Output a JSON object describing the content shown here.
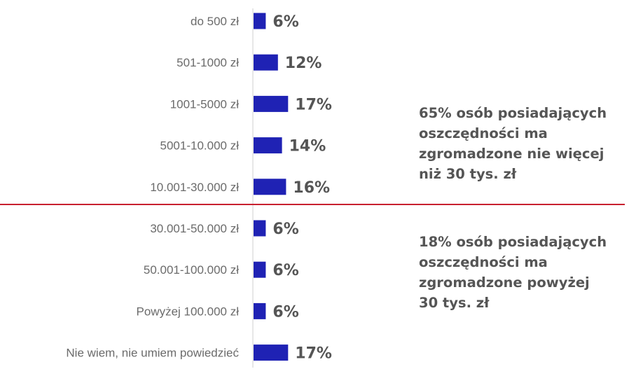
{
  "chart_data": {
    "type": "bar",
    "orientation": "horizontal",
    "categories": [
      "do 500 zł",
      "501-1000 zł",
      "1001-5000 zł",
      "5001-10.000 zł",
      "10.001-30.000 zł",
      "30.001-50.000 zł",
      "50.001-100.000 zł",
      "Powyżej 100.000 zł",
      "Nie wiem, nie umiem powiedzieć"
    ],
    "values": [
      6,
      12,
      17,
      14,
      16,
      6,
      6,
      6,
      17
    ],
    "value_labels": [
      "6%",
      "12%",
      "17%",
      "14%",
      "16%",
      "6%",
      "6%",
      "6%",
      "17%"
    ],
    "unit": "%",
    "title": "",
    "xlabel": "",
    "ylabel": "",
    "grid": false,
    "legend": "none",
    "bar_color": "#1f22b4",
    "divider_color": "#c8202f",
    "annotations": [
      "65% osób posiadających\noszczędności ma\nzgromadzone nie więcej\nniż 30 tys. zł",
      "18% osób posiadających\noszczędności ma\nzgromadzone powyżej\n30 tys. zł"
    ]
  }
}
